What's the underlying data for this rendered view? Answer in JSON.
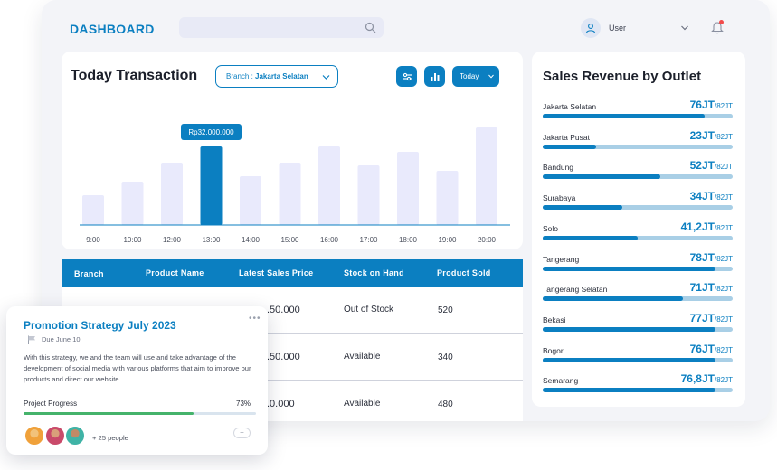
{
  "header": {
    "brand": "DASHBOARD",
    "user_label": "User",
    "icons": [
      "search-icon",
      "user-icon",
      "chevron-down-icon",
      "bell-icon"
    ]
  },
  "transaction": {
    "title": "Today Transaction",
    "branch_prefix": "Branch : ",
    "branch_value": "Jakarta Selatan",
    "period_label": "Today",
    "tooltip": "Rp32.000.000",
    "icons": [
      "filter-icon",
      "bar-chart-icon"
    ]
  },
  "chart_data": {
    "type": "bar",
    "categories": [
      "9:00",
      "10:00",
      "12:00",
      "13:00",
      "14:00",
      "15:00",
      "16:00",
      "17:00",
      "18:00",
      "19:00",
      "20:00"
    ],
    "values": [
      11,
      16,
      23,
      29,
      18,
      23,
      29,
      22,
      27,
      20,
      36
    ],
    "highlight_index": 3,
    "ylim": [
      0,
      40
    ],
    "colors": {
      "bar": "#e9eafc",
      "highlight": "#0b7fc1",
      "baseline": "#0b7fc1"
    }
  },
  "table": {
    "headers": [
      "Branch",
      "Product Name",
      "Latest Sales Price",
      "Stock on Hand",
      "Product Sold"
    ],
    "rows": [
      {
        "price": ".50.000",
        "stock": "Out of Stock",
        "sold": "520"
      },
      {
        "price": ".50.000",
        "stock": "Available",
        "sold": "340"
      },
      {
        "price": ".0.000",
        "stock": "Available",
        "sold": "480"
      }
    ]
  },
  "revenue": {
    "title": "Sales Revenue by Outlet",
    "target": "/82JT",
    "outlets": [
      {
        "name": "Jakarta Selatan",
        "value": "76JT",
        "fraction": 0.85
      },
      {
        "name": "Jakarta Pusat",
        "value": "23JT",
        "fraction": 0.28
      },
      {
        "name": "Bandung",
        "value": "52JT",
        "fraction": 0.62
      },
      {
        "name": "Surabaya",
        "value": "34JT",
        "fraction": 0.42
      },
      {
        "name": "Solo",
        "value": "41,2JT",
        "fraction": 0.5
      },
      {
        "name": "Tangerang",
        "value": "78JT",
        "fraction": 0.91
      },
      {
        "name": "Tangerang Selatan",
        "value": "71JT",
        "fraction": 0.74
      },
      {
        "name": "Bekasi",
        "value": "77JT",
        "fraction": 0.91
      },
      {
        "name": "Bogor",
        "value": "76JT",
        "fraction": 0.91
      },
      {
        "name": "Semarang",
        "value": "76,8JT",
        "fraction": 0.91
      }
    ],
    "colors": {
      "fill": "#0b7fc1",
      "track": "#a9cfe6"
    }
  },
  "promo": {
    "title": "Promotion Strategy July 2023",
    "menu": "•••",
    "due": "Due June 10",
    "description": "With this strategy, we and the team will use and take advantage of the development of social media with various platforms that aim to improve our products and direct our website.",
    "progress_label": "Project Progress",
    "progress_text": "73%",
    "progress_fraction": 0.73,
    "people": "+ 25 people",
    "add": "+",
    "icons": [
      "flag-icon",
      "avatar",
      "add-icon"
    ]
  }
}
